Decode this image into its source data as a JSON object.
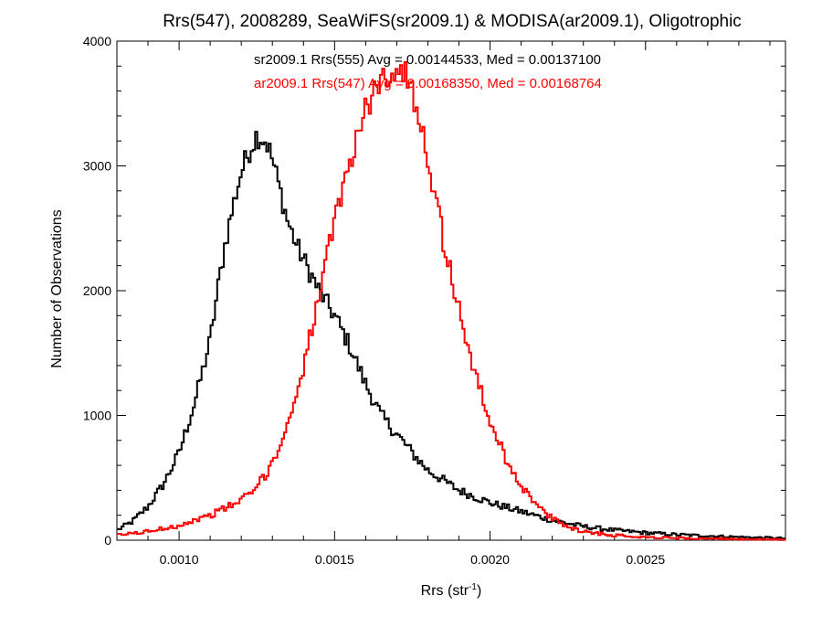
{
  "chart_data": {
    "type": "line",
    "title": "Rrs(547), 2008289, SeaWiFS(sr2009.1) & MODISA(ar2009.1), Oligotrophic",
    "xlabel": "Rrs (str",
    "xlabel_sup": "-1",
    "xlabel_end": ")",
    "ylabel": "Number of Observations",
    "xlim": [
      0.0008,
      0.00295
    ],
    "ylim": [
      0,
      4000
    ],
    "xticks": [
      {
        "value": 0.001,
        "label": "0.0010"
      },
      {
        "value": 0.0015,
        "label": "0.0015"
      },
      {
        "value": 0.002,
        "label": "0.0020"
      },
      {
        "value": 0.0025,
        "label": "0.0025"
      }
    ],
    "yticks": [
      {
        "value": 0,
        "label": "0"
      },
      {
        "value": 1000,
        "label": "1000"
      },
      {
        "value": 2000,
        "label": "2000"
      },
      {
        "value": 3000,
        "label": "3000"
      },
      {
        "value": 4000,
        "label": "4000"
      }
    ],
    "grid": false,
    "annotations": [
      {
        "text": "sr2009.1 Rrs(555) Avg = 0.00144533, Med = 0.00137100",
        "color": "#000000"
      },
      {
        "text": "ar2009.1 Rrs(547) Avg = 0.00168350, Med = 0.00168764",
        "color": "#ff0000"
      }
    ],
    "series": [
      {
        "color": "#000000",
        "x": [
          0.0008,
          0.00085,
          0.0009,
          0.00095,
          0.001,
          0.00105,
          0.0011,
          0.00113,
          0.00115,
          0.00118,
          0.0012,
          0.00123,
          0.00125,
          0.00128,
          0.0013,
          0.00133,
          0.00135,
          0.00138,
          0.0014,
          0.00145,
          0.0015,
          0.00155,
          0.0016,
          0.00165,
          0.0017,
          0.00175,
          0.0018,
          0.0019,
          0.002,
          0.0021,
          0.0022,
          0.0023,
          0.0024,
          0.0025,
          0.0026,
          0.0027,
          0.0028,
          0.00295
        ],
        "y": [
          80,
          150,
          270,
          450,
          700,
          1100,
          1600,
          2100,
          2400,
          2750,
          2950,
          3150,
          3250,
          3200,
          3050,
          2750,
          2550,
          2350,
          2250,
          2000,
          1800,
          1550,
          1250,
          1000,
          850,
          700,
          560,
          400,
          300,
          230,
          160,
          110,
          80,
          60,
          45,
          35,
          25,
          15
        ]
      },
      {
        "color": "#ff0000",
        "x": [
          0.0008,
          0.0009,
          0.001,
          0.0011,
          0.0012,
          0.00125,
          0.0013,
          0.00135,
          0.0014,
          0.00145,
          0.0015,
          0.00155,
          0.0016,
          0.00163,
          0.00165,
          0.00168,
          0.0017,
          0.00173,
          0.00175,
          0.00178,
          0.0018,
          0.00183,
          0.00185,
          0.0019,
          0.00195,
          0.002,
          0.00205,
          0.0021,
          0.00215,
          0.0022,
          0.00225,
          0.0023,
          0.0024,
          0.0025,
          0.0026,
          0.0027,
          0.0028,
          0.00295
        ],
        "y": [
          40,
          70,
          120,
          200,
          320,
          420,
          620,
          920,
          1400,
          1950,
          2550,
          3050,
          3450,
          3600,
          3700,
          3750,
          3780,
          3720,
          3600,
          3350,
          3050,
          2700,
          2400,
          1850,
          1350,
          950,
          660,
          440,
          280,
          170,
          110,
          70,
          40,
          25,
          18,
          12,
          8,
          5
        ]
      }
    ]
  }
}
